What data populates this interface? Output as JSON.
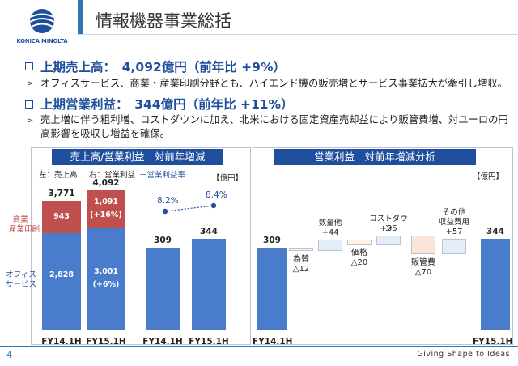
{
  "brand": {
    "name": "KONICA MINOLTA",
    "tagline": "Giving Shape to Ideas"
  },
  "page": {
    "title": "情報機器事業総括",
    "number": "4"
  },
  "bullets": [
    {
      "heading": "上期売上高：　4,092億円（前年比 +9%）",
      "text": "オフィスサービス、商業・産業印刷分野とも、ハイエンド機の販売増とサービス事業拡大が牽引し増収。"
    },
    {
      "heading": "上期営業利益：　344億円（前年比 +11%）",
      "text": "売上増に伴う粗利増、コストダウンに加え、北米における固定資産売却益により販管費増、対ユーロの円高影響を吸収し増益を確保。"
    }
  ],
  "left_panel": {
    "title": "売上高/営業利益　対前年増減",
    "legend": {
      "left": "左：売上高",
      "right": "右：営業利益",
      "rate": "－営業利益率"
    },
    "unit": "【億円】",
    "labels": {
      "commercial": "商業・\n産業印刷",
      "office": "オフィス\nサービス"
    },
    "sales": [
      {
        "period": "FY14.1H",
        "total": "3,771",
        "office": 2828,
        "office_label": "2,828",
        "commercial": 943,
        "commercial_label": "943",
        "office_growth": "",
        "commercial_growth": ""
      },
      {
        "period": "FY15.1H",
        "total": "4,092",
        "office": 3001,
        "office_label": "3,001",
        "commercial": 1091,
        "commercial_label": "1,091",
        "office_growth": "(+6%)",
        "commercial_growth": "(+16%)"
      }
    ],
    "profit": [
      {
        "period": "FY14.1H",
        "value": 309,
        "label": "309",
        "rate": "8.2%"
      },
      {
        "period": "FY15.1H",
        "value": 344,
        "label": "344",
        "rate": "8.4%"
      }
    ]
  },
  "right_panel": {
    "title": "営業利益　対前年増減分析",
    "unit": "【億円】",
    "start": {
      "label": "FY14.1H",
      "value": "309"
    },
    "end": {
      "label": "FY15.1H",
      "value": "344"
    },
    "steps": [
      {
        "name": "為替",
        "value": "△12"
      },
      {
        "name": "数量他",
        "value": "+44"
      },
      {
        "name": "価格",
        "value": "△20"
      },
      {
        "name": "コストダウン",
        "value": "+36"
      },
      {
        "name": "販管費",
        "value": "△70"
      },
      {
        "name": "その他\n収益費用",
        "value": "+57"
      }
    ]
  },
  "colors": {
    "brand_blue": "#1f4e9c",
    "bar_blue": "#4a7ccc",
    "bar_red": "#c0504d",
    "accent": "#2e75b6"
  }
}
